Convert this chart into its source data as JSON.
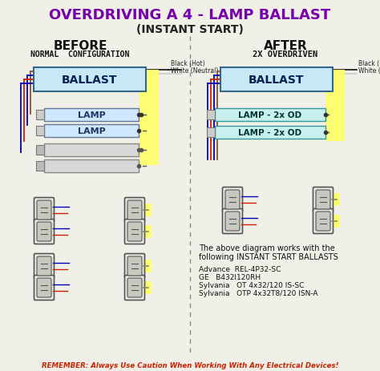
{
  "title": "OVERDRIVING A 4 - LAMP BALLAST",
  "subtitle": "(INSTANT START)",
  "before_label": "BEFORE",
  "before_sub": "NORMAL  CONFIGURATION",
  "after_label": "AFTER",
  "after_sub": "2X OVERDRIVEN",
  "ballast_text": "BALLAST",
  "lamp_text": "LAMP",
  "lamp_od_text": "LAMP - 2x OD",
  "black_hot": "Black (Hot)",
  "white_neutral": "White (Neutral)",
  "body_text1": "The above diagram works with the",
  "body_text2": "following INSTANT START BALLASTS",
  "advance": "Advance  REL-4P32-SC",
  "ge": "GE   B432I120RH",
  "sylvania1": "Sylvania   OT 4x32/120 IS-SC",
  "sylvania2": "Sylvania   OTP 4x32T8/120 ISN-A",
  "remember": "REMEMBER: Always Use Caution When Working With Any Electrical Devices!",
  "bg_color": "#f0f0e8",
  "title_color": "#7700aa",
  "ballast_fill": "#c8e8f8",
  "ballast_edge": "#336688",
  "lamp_fill": "#d0e8ff",
  "lamp_od_fill": "#c8f0ee",
  "wire_black": "#111111",
  "wire_red": "#cc2200",
  "wire_blue": "#0000bb",
  "wire_brown": "#885522",
  "wire_gray": "#888888",
  "yellow_glow": "#ffff66",
  "divider_color": "#888888",
  "remember_color": "#cc2200",
  "socket_color": "#555555"
}
